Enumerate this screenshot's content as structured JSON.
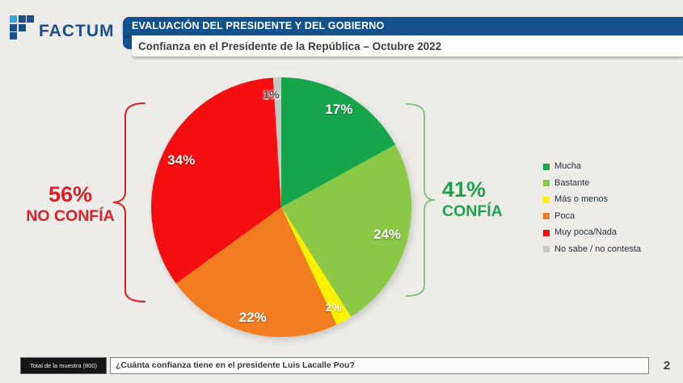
{
  "logo": {
    "brand": "FACTUM"
  },
  "header": {
    "title": "EVALUACIÓN DEL PRESIDENTE Y DEL GOBIERNO",
    "subtitle": "Confianza en el Presidente de la República – Octubre 2022",
    "bar_color": "#15518c"
  },
  "chart_data": {
    "type": "pie",
    "title": "Confianza en el Presidente de la República – Octubre 2022",
    "start_angle_deg": 0,
    "direction": "clockwise",
    "legend_position": "right",
    "slices": [
      {
        "label": "Mucha",
        "value": 17,
        "data_label": "17%",
        "color": "#16a54a",
        "data_label_color": "#ffffff"
      },
      {
        "label": "Bastante",
        "value": 24,
        "data_label": "24%",
        "color": "#8bc846",
        "data_label_color": "#ffffff"
      },
      {
        "label": "Más o menos",
        "value": 2,
        "data_label": "2%",
        "color": "#fef200",
        "data_label_color": "#ffffff"
      },
      {
        "label": "Poca",
        "value": 22,
        "data_label": "22%",
        "color": "#f27d21",
        "data_label_color": "#ffffff"
      },
      {
        "label": "Muy poca/Nada",
        "value": 34,
        "data_label": "34%",
        "color": "#f50f10",
        "data_label_color": "#ffffff"
      },
      {
        "label": "No sabe / no contesta",
        "value": 1,
        "data_label": "1%",
        "color": "#c8c8c8",
        "data_label_color": "#4a4a4a"
      }
    ],
    "annotations": [
      {
        "side": "left",
        "text_value": "56%",
        "text_label": "NO CONFÍA",
        "color": "#dc2126",
        "brace_color": "#dc2126"
      },
      {
        "side": "right",
        "text_value": "41%",
        "text_label": "CONFÍA",
        "color": "#21a24e",
        "brace_color": "#77c077"
      }
    ]
  },
  "footer": {
    "sample_label": "Total de la muestra (800)",
    "question": "¿Cuánta confianza tiene en el presidente Luis Lacalle Pou?",
    "page_number": "2"
  }
}
